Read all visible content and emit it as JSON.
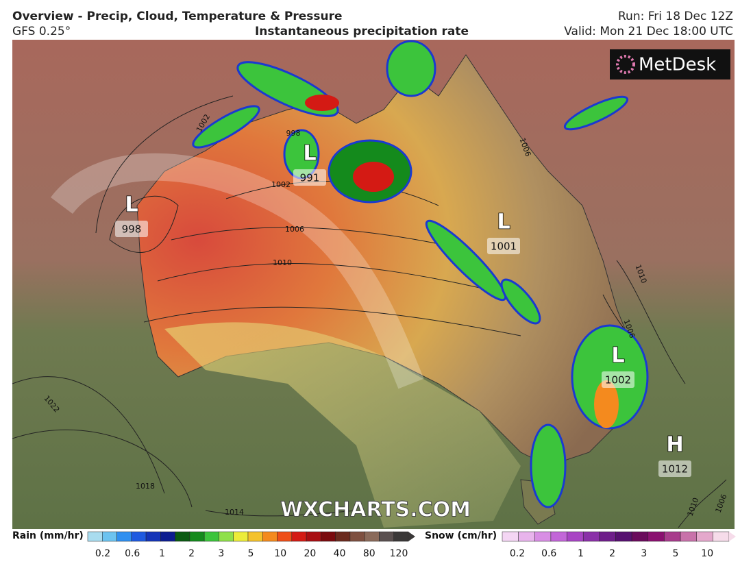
{
  "header": {
    "title": "Overview - Precip, Cloud, Temperature & Pressure",
    "model": "GFS 0.25°",
    "product": "Instantaneous precipitation rate",
    "run": "Run: Fri 18 Dec 12Z",
    "valid": "Valid: Mon 21 Dec 18:00 UTC",
    "logo": "MetDesk"
  },
  "centers": [
    {
      "symbol": "L",
      "value": "998"
    },
    {
      "symbol": "L",
      "value": "991"
    },
    {
      "symbol": "L",
      "value": "1001"
    },
    {
      "symbol": "L",
      "value": "1002"
    },
    {
      "symbol": "H",
      "value": "1012"
    }
  ],
  "isobar_labels": [
    "1002",
    "998",
    "1002",
    "1006",
    "1010",
    "1006",
    "1010",
    "1006",
    "1022",
    "1018",
    "1014",
    "1010",
    "1006"
  ],
  "watermark": "WXCHARTS.COM",
  "legend": {
    "rain": {
      "title": "Rain (mm/hr)",
      "ticks": [
        "0.2",
        "0.6",
        "1",
        "2",
        "3",
        "5",
        "10",
        "20",
        "40",
        "80",
        "120"
      ],
      "colors": [
        "#a9dcef",
        "#6cc3f0",
        "#2f8ff0",
        "#1f5ae0",
        "#1434b8",
        "#0c1c90",
        "#0a5a12",
        "#148a1c",
        "#3cc43c",
        "#8fe04a",
        "#ecec3a",
        "#f4c22c",
        "#f48a1e",
        "#ee4e18",
        "#d41a14",
        "#a80e12",
        "#7a0a0e",
        "#6a2a1e",
        "#7e5040",
        "#8a6a5a",
        "#5a5050",
        "#3a3838"
      ]
    },
    "snow": {
      "title": "Snow (cm/hr)",
      "ticks": [
        "0.2",
        "0.6",
        "1",
        "2",
        "3",
        "5",
        "10"
      ],
      "colors": [
        "#f4d6f4",
        "#e8b4ec",
        "#d88ee4",
        "#c266d8",
        "#a844c4",
        "#8a30a8",
        "#6e1e8a",
        "#561070",
        "#6a0a5c",
        "#8a1070",
        "#a83c8c",
        "#c872aa",
        "#e4a8cc",
        "#f6dcea"
      ]
    }
  }
}
